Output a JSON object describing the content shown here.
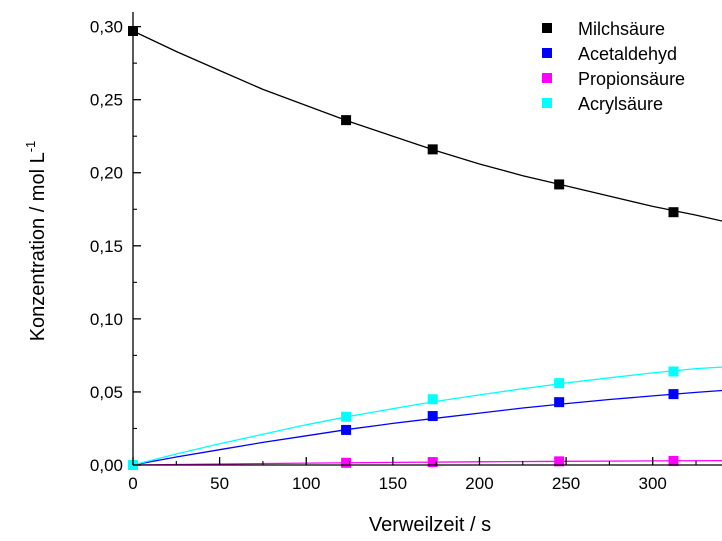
{
  "chart_data": {
    "type": "scatter",
    "xlabel": "Verweilzeit / s",
    "ylabel": "Konzentration / mol L",
    "ylabel_sup": "-1",
    "xlim": [
      0,
      340
    ],
    "ylim": [
      0,
      0.31
    ],
    "xticks": [
      0,
      50,
      100,
      150,
      200,
      250,
      300
    ],
    "xtick_labels": [
      "0",
      "50",
      "100",
      "150",
      "200",
      "250",
      "300"
    ],
    "yticks": [
      0,
      0.05,
      0.1,
      0.15,
      0.2,
      0.25,
      0.3
    ],
    "ytick_labels": [
      "0,00",
      "0,05",
      "0,10",
      "0,15",
      "0,20",
      "0,25",
      "0,30"
    ],
    "grid": false,
    "legend_position": "top-right",
    "series": [
      {
        "name": "Milchsäure",
        "color": "#000000",
        "marker": "square",
        "x": [
          0,
          123,
          173,
          246,
          312
        ],
        "y": [
          0.297,
          0.236,
          0.216,
          0.192,
          0.173
        ],
        "fit": {
          "x": [
            0,
            25,
            50,
            75,
            100,
            125,
            150,
            175,
            200,
            225,
            250,
            275,
            300,
            325,
            340
          ],
          "y": [
            0.297,
            0.283,
            0.27,
            0.257,
            0.246,
            0.235,
            0.225,
            0.215,
            0.206,
            0.198,
            0.191,
            0.184,
            0.177,
            0.171,
            0.167
          ]
        }
      },
      {
        "name": "Acetaldehyd",
        "color": "#0000ff",
        "marker": "square",
        "x": [
          0,
          123,
          173,
          246,
          312
        ],
        "y": [
          0.0,
          0.024,
          0.0335,
          0.043,
          0.0485
        ],
        "fit": {
          "x": [
            0,
            25,
            50,
            75,
            100,
            125,
            150,
            175,
            200,
            225,
            250,
            275,
            300,
            325,
            340
          ],
          "y": [
            0.0,
            0.0055,
            0.0105,
            0.0155,
            0.02,
            0.0245,
            0.0285,
            0.032,
            0.0355,
            0.039,
            0.042,
            0.0448,
            0.0473,
            0.0497,
            0.051
          ]
        }
      },
      {
        "name": "Propionsäure",
        "color": "#ff00ff",
        "marker": "square",
        "x": [
          0,
          123,
          173,
          246,
          312
        ],
        "y": [
          0.0,
          0.0015,
          0.002,
          0.0025,
          0.0028
        ],
        "fit": {
          "x": [
            0,
            50,
            100,
            150,
            200,
            250,
            300,
            340
          ],
          "y": [
            0.0,
            0.0007,
            0.0013,
            0.0018,
            0.0022,
            0.0025,
            0.0028,
            0.003
          ]
        }
      },
      {
        "name": "Acrylsäure",
        "color": "#00ffff",
        "marker": "square",
        "x": [
          0,
          123,
          173,
          246,
          312
        ],
        "y": [
          0.0,
          0.033,
          0.045,
          0.056,
          0.064
        ],
        "fit": {
          "x": [
            0,
            25,
            50,
            75,
            100,
            125,
            150,
            175,
            200,
            225,
            250,
            275,
            300,
            325,
            340
          ],
          "y": [
            0.0,
            0.0075,
            0.0145,
            0.021,
            0.0275,
            0.0333,
            0.0385,
            0.0435,
            0.048,
            0.0522,
            0.0561,
            0.0597,
            0.063,
            0.066,
            0.067
          ]
        }
      }
    ]
  }
}
